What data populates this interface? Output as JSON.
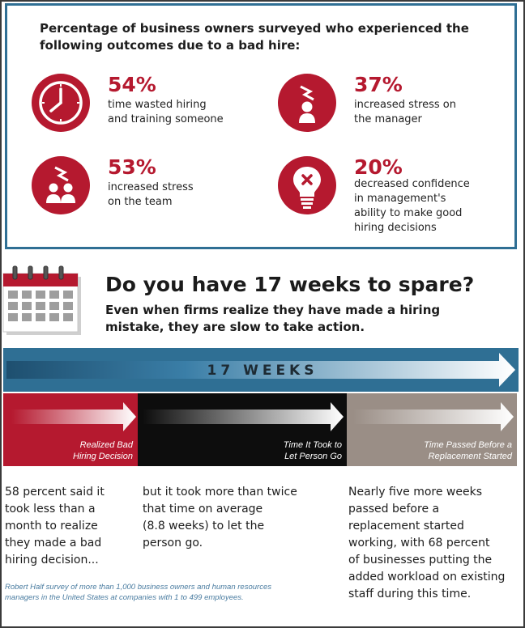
{
  "survey": {
    "heading": "Percentage of business owners surveyed who experienced the following outcomes due to a bad hire:",
    "stats": [
      {
        "percent": "54%",
        "line1": "time wasted hiring",
        "line2": "and training someone",
        "line3": "",
        "line4": "",
        "icon": "clock-icon"
      },
      {
        "percent": "37%",
        "line1": "increased stress on",
        "line2": "the manager",
        "line3": "",
        "line4": "",
        "icon": "stressed-person-icon"
      },
      {
        "percent": "53%",
        "line1": "increased stress",
        "line2": "on the team",
        "line3": "",
        "line4": "",
        "icon": "stressed-team-icon"
      },
      {
        "percent": "20%",
        "line1": "decreased confidence",
        "line2": "in management's",
        "line3": "ability to make good",
        "line4": "hiring decisions",
        "icon": "broken-lightbulb-icon"
      }
    ]
  },
  "question": {
    "title": "Do you have 17 weeks to spare?",
    "subtitle_line1": "Even when firms realize they have made a hiring",
    "subtitle_line2": "mistake, they are slow to take action."
  },
  "timeline": {
    "total_label": "17 WEEKS",
    "phases": [
      {
        "label_line1": "Realized Bad",
        "label_line2": "Hiring Decision",
        "color": "#b5192f",
        "text": [
          "58 percent said it",
          "took less than a",
          "month to realize",
          "they made a bad",
          "hiring decision..."
        ]
      },
      {
        "label_line1": "Time It Took to",
        "label_line2": "Let Person Go",
        "color": "#0d0d0d",
        "text": [
          "but it took more than twice",
          "that time on average",
          "(8.8 weeks) to let the",
          "person go."
        ]
      },
      {
        "label_line1": "Time Passed Before a",
        "label_line2": "Replacement Started",
        "color": "#9a8e86",
        "text": [
          "Nearly five more weeks",
          "passed before a",
          "replacement started",
          "working, with 68 percent",
          "of businesses putting the",
          "added workload on existing",
          "staff during this time."
        ]
      }
    ]
  },
  "source": {
    "line1": "Robert Half survey of more than 1,000 business owners and human resources",
    "line2": "managers in the United States at companies with 1 to 499 employees."
  },
  "colors": {
    "accent": "#b5192f",
    "frame_blue": "#2f6f94",
    "bar_blue": "#2f6f94",
    "gray": "#9a8e86",
    "black": "#0d0d0d"
  }
}
